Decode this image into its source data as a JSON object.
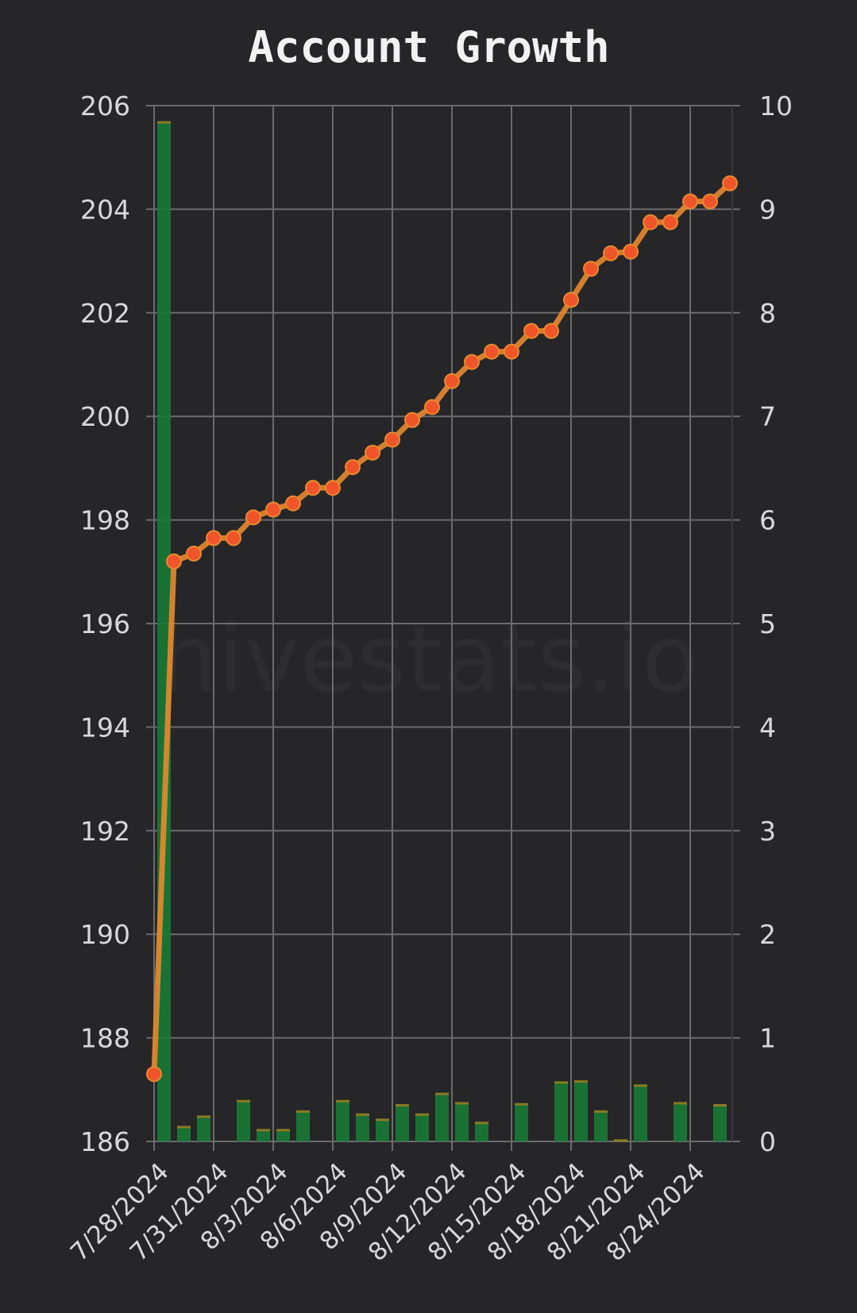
{
  "chart_data": {
    "type": "bar+line",
    "title": "Account Growth",
    "watermark": "hivestats.io",
    "x": [
      "7/28/2024",
      "7/29/2024",
      "7/30/2024",
      "7/31/2024",
      "8/1/2024",
      "8/2/2024",
      "8/3/2024",
      "8/4/2024",
      "8/5/2024",
      "8/6/2024",
      "8/7/2024",
      "8/8/2024",
      "8/9/2024",
      "8/10/2024",
      "8/11/2024",
      "8/12/2024",
      "8/13/2024",
      "8/14/2024",
      "8/15/2024",
      "8/16/2024",
      "8/17/2024",
      "8/18/2024",
      "8/19/2024",
      "8/20/2024",
      "8/21/2024",
      "8/22/2024",
      "8/23/2024",
      "8/24/2024",
      "8/25/2024",
      "8/26/2024"
    ],
    "x_tick_labels": [
      "7/28/2024",
      "7/31/2024",
      "8/3/2024",
      "8/6/2024",
      "8/9/2024",
      "8/12/2024",
      "8/15/2024",
      "8/18/2024",
      "8/21/2024",
      "8/24/2024"
    ],
    "left_axis": {
      "ylim": [
        186,
        206
      ],
      "ticks": [
        186,
        188,
        190,
        192,
        194,
        196,
        198,
        200,
        202,
        204,
        206
      ]
    },
    "right_axis": {
      "ylim": [
        0,
        10
      ],
      "ticks": [
        0,
        1,
        2,
        3,
        4,
        5,
        6,
        7,
        8,
        9,
        10
      ]
    },
    "series": [
      {
        "type": "line",
        "axis": "left",
        "color": "#e8892e",
        "marker_color": "#f0552a",
        "values": [
          187.3,
          197.2,
          197.35,
          197.65,
          197.65,
          198.05,
          198.2,
          198.32,
          198.62,
          198.62,
          199.02,
          199.3,
          199.55,
          199.93,
          200.18,
          200.68,
          201.05,
          201.25,
          201.25,
          201.65,
          201.65,
          202.25,
          202.85,
          203.15,
          203.18,
          203.75,
          203.75,
          204.15,
          204.15,
          204.5
        ]
      },
      {
        "type": "bar",
        "axis": "right",
        "color": "#1a7a35",
        "top_color": "#8a7a20",
        "values": [
          9.85,
          0.15,
          0.25,
          0,
          0.4,
          0.12,
          0.12,
          0.3,
          0,
          0.4,
          0.27,
          0.22,
          0.36,
          0.27,
          0.47,
          0.38,
          0.19,
          0,
          0.37,
          0,
          0.58,
          0.59,
          0.3,
          0.02,
          0.55,
          0,
          0.38,
          0,
          0.36,
          0
        ]
      }
    ],
    "grid": true
  }
}
